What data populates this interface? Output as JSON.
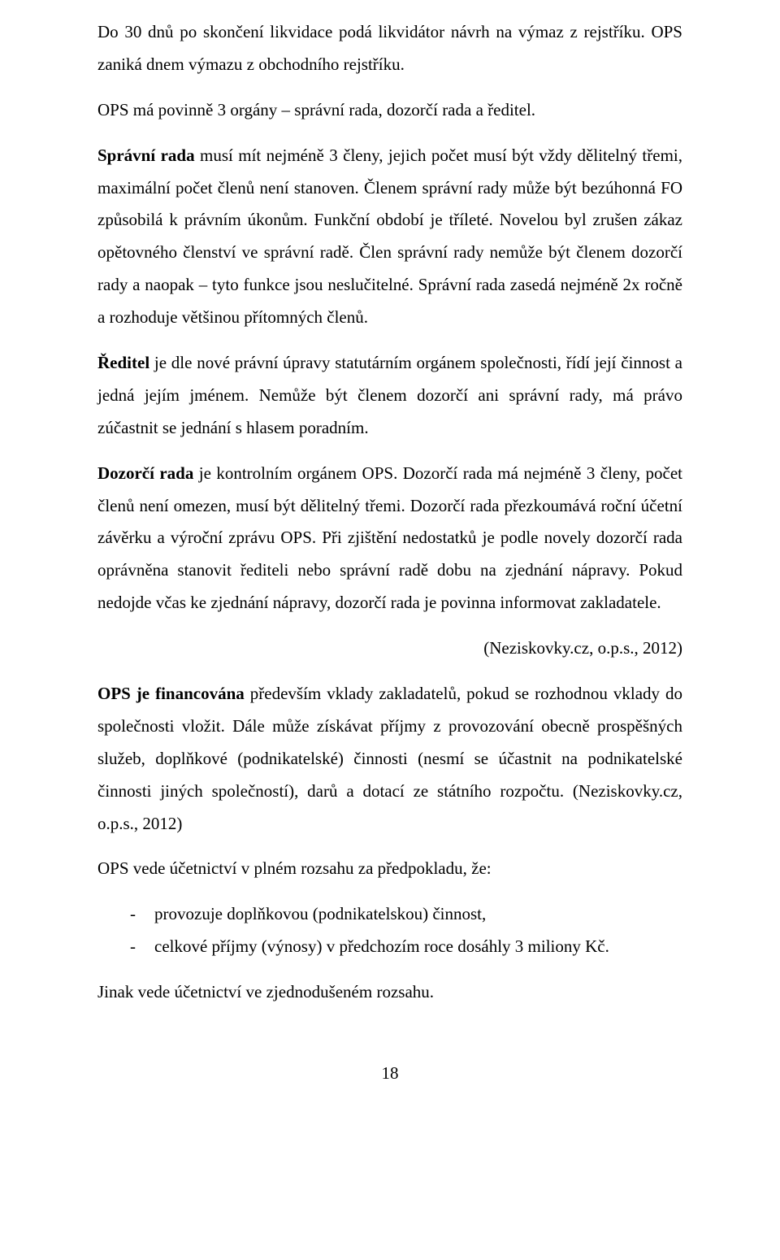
{
  "p1": {
    "a": "Do 30 dnů po skončení likvidace podá likvidátor návrh na výmaz z rejstříku. OPS zaniká dnem výmazu z obchodního rejstříku."
  },
  "p2": {
    "a": "OPS má povinně 3 orgány – správní rada, dozorčí rada a ředitel."
  },
  "p3": {
    "strong": "Správní rada",
    "a": " musí mít nejméně 3 členy, jejich počet musí být vždy dělitelný třemi, maximální počet členů není stanoven. Členem správní rady může být bezúhonná FO způsobilá k právním úkonům. Funkční období je tříleté. Novelou byl zrušen zákaz opětovného členství ve správní radě. Člen správní rady nemůže být členem dozorčí rady a naopak – tyto funkce jsou neslučitelné. Správní rada zasedá nejméně 2x ročně a rozhoduje většinou přítomných členů."
  },
  "p4": {
    "strong": "Ředitel",
    "a": " je dle nové právní úpravy statutárním orgánem společnosti, řídí její činnost a jedná jejím jménem. Nemůže být členem dozorčí ani správní rady, má právo zúčastnit se jednání s hlasem poradním."
  },
  "p5": {
    "strong": "Dozorčí rada",
    "a": " je kontrolním orgánem OPS. Dozorčí rada má nejméně 3 členy, počet členů není omezen, musí být dělitelný třemi. Dozorčí rada přezkoumává roční účetní závěrku a výroční zprávu OPS. Při zjištění nedostatků je podle novely dozorčí rada oprávněna stanovit řediteli nebo správní radě dobu na zjednání nápravy. Pokud nedojde včas ke zjednání nápravy, dozorčí rada je povinna informovat zakladatele."
  },
  "cite1": "(Neziskovky.cz, o.p.s., 2012)",
  "p6": {
    "strong": "OPS je financována",
    "a": " především vklady zakladatelů, pokud se rozhodnou vklady do společnosti vložit. Dále může získávat příjmy z provozování obecně prospěšných služeb, doplňkové (podnikatelské) činnosti (nesmí se účastnit na podnikatelské činnosti jiných společností), darů a dotací ze státního rozpočtu. (Neziskovky.cz, o.p.s., 2012)"
  },
  "p7": {
    "a": "OPS vede účetnictví v plném rozsahu za předpokladu, že:"
  },
  "list": {
    "i0": "provozuje doplňkovou (podnikatelskou) činnost,",
    "i1": "celkové příjmy (výnosy) v předchozím roce dosáhly 3 miliony Kč."
  },
  "p8": {
    "a": "Jinak vede účetnictví ve zjednodušeném rozsahu."
  },
  "page_number": "18"
}
